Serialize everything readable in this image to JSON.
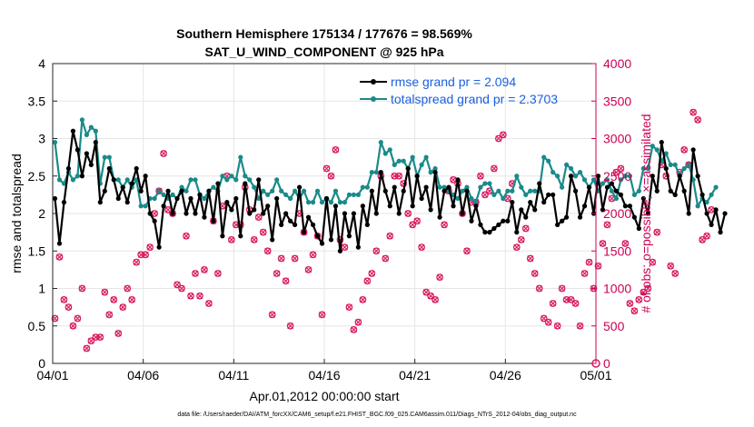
{
  "chart_data": {
    "type": "line",
    "title_line1": "Southern Hemisphere 175134 / 177676 = 98.569%",
    "title_line2": "SAT_U_WIND_COMPONENT @ 925 hPa",
    "xlabel": "Apr.01,2012 00:00:00 start",
    "ylabel_left": "rmse and totalspread",
    "ylabel_right": "# of obs: o=possible; ×=assimilated",
    "footnote": "data file: /Users/raeder/DAI/ATM_forcXX/CAM6_setup/f.e21.FHIST_BGC.f09_025.CAM6assim.011/Diags_NTrS_2012-04/obs_diag_output.nc",
    "xlim_days": [
      0,
      30
    ],
    "ylim_left": [
      0,
      4
    ],
    "ylim_right": [
      0,
      4000
    ],
    "x_tick_values": [
      0,
      5,
      10,
      15,
      20,
      25,
      30
    ],
    "x_tick_labels": [
      "04/01",
      "04/06",
      "04/11",
      "04/16",
      "04/21",
      "04/26",
      "05/01"
    ],
    "y_left_ticks": [
      "0",
      "0.5",
      "1",
      "1.5",
      "2",
      "2.5",
      "3",
      "3.5",
      "4"
    ],
    "y_right_ticks": [
      "0",
      "500",
      "1000",
      "1500",
      "2000",
      "2500",
      "3000",
      "3500",
      "4000"
    ],
    "colors": {
      "rmse": "#000000",
      "spread": "#1a8a8a",
      "obs": "#d81b60",
      "right_axis": "#cc0055",
      "legend_text": "#1a5fe0"
    },
    "series": [
      {
        "name": "rmse grand pr = 2.094",
        "key": "rmse",
        "step_days": 0.25,
        "values": [
          2.2,
          1.6,
          2.15,
          2.6,
          3.1,
          2.85,
          2.5,
          2.8,
          2.65,
          2.95,
          2.15,
          2.3,
          2.6,
          2.45,
          2.2,
          2.35,
          2.15,
          2.4,
          2.6,
          2.3,
          2.5,
          2.0,
          1.9,
          1.55,
          2.1,
          2.3,
          2.0,
          2.2,
          2.3,
          2.0,
          2.2,
          2.0,
          2.25,
          1.95,
          2.3,
          1.9,
          2.4,
          1.7,
          2.15,
          2.05,
          2.2,
          1.7,
          2.4,
          2.0,
          2.05,
          2.45,
          2.0,
          2.1,
          1.65,
          2.2,
          1.85,
          2.0,
          1.9,
          1.85,
          2.35,
          1.75,
          1.95,
          1.85,
          1.7,
          1.6,
          2.2,
          1.65,
          2.1,
          1.5,
          2.0,
          1.7,
          2.0,
          1.55,
          2.1,
          1.85,
          2.3,
          2.0,
          2.55,
          2.3,
          2.1,
          2.35,
          2.0,
          2.3,
          2.6,
          2.1,
          2.5,
          2.2,
          2.35,
          2.05,
          2.55,
          1.95,
          2.3,
          2.35,
          2.1,
          2.45,
          2.0,
          2.3,
          1.9,
          2.1,
          1.85,
          1.75,
          1.75,
          1.8,
          1.85,
          1.9,
          1.9,
          2.15,
          1.75,
          2.05,
          1.95,
          2.15,
          2.05,
          2.4,
          2.15,
          2.25,
          2.25,
          1.85,
          1.9,
          1.95,
          2.5,
          2.3,
          1.95,
          2.1,
          2.35,
          2.0,
          2.5,
          2.05,
          2.35,
          2.4,
          2.3,
          2.25,
          2.1,
          2.1,
          1.95,
          1.8,
          2.2,
          2.0,
          2.5,
          2.3,
          2.95,
          2.6,
          2.3,
          2.25,
          2.5,
          2.3,
          2.0,
          2.85,
          2.5,
          2.25,
          2.0,
          1.85,
          2.05,
          1.75,
          2.0
        ]
      },
      {
        "name": "totalspread grand pr = 2.3703",
        "key": "spread",
        "step_days": 0.25,
        "values": [
          2.95,
          2.45,
          2.4,
          2.55,
          2.45,
          2.5,
          3.25,
          3.05,
          3.15,
          3.1,
          2.4,
          2.75,
          2.75,
          2.45,
          2.45,
          2.35,
          2.45,
          2.35,
          2.45,
          2.1,
          2.1,
          2.2,
          2.2,
          2.3,
          2.25,
          2.2,
          2.25,
          2.2,
          2.35,
          2.3,
          2.45,
          2.45,
          2.25,
          2.2,
          2.3,
          2.35,
          2.3,
          2.5,
          2.45,
          2.5,
          2.45,
          2.75,
          2.5,
          2.45,
          2.35,
          2.2,
          2.3,
          2.25,
          2.3,
          2.45,
          2.3,
          2.25,
          2.2,
          2.3,
          2.2,
          2.3,
          2.15,
          2.15,
          2.3,
          2.15,
          2.2,
          2.15,
          2.3,
          2.15,
          2.15,
          2.25,
          2.25,
          2.25,
          2.35,
          2.35,
          2.55,
          2.55,
          2.95,
          2.8,
          2.85,
          2.65,
          2.7,
          2.7,
          2.6,
          2.75,
          2.5,
          2.65,
          2.75,
          2.55,
          2.6,
          2.35,
          2.35,
          2.3,
          2.25,
          2.2,
          2.3,
          2.35,
          2.2,
          2.15,
          2.35,
          2.4,
          2.4,
          2.25,
          2.3,
          2.2,
          2.3,
          2.3,
          2.5,
          2.35,
          2.25,
          2.3,
          2.3,
          2.3,
          2.75,
          2.7,
          2.55,
          2.5,
          2.35,
          2.65,
          2.6,
          2.5,
          2.55,
          2.45,
          2.35,
          2.45,
          2.3,
          2.4,
          2.45,
          2.3,
          2.2,
          2.45,
          2.5,
          2.5,
          2.25,
          2.3,
          2.6,
          2.6,
          2.9,
          2.85,
          2.7,
          2.8,
          2.65,
          2.65,
          2.5,
          2.6,
          2.65,
          2.45,
          2.1,
          2.2,
          2.15,
          2.25,
          2.35
        ]
      }
    ],
    "obs_counts": {
      "name": "assimilated observation count (right axis)",
      "step_days": 0.25,
      "values": [
        600,
        1420,
        850,
        750,
        500,
        600,
        1000,
        200,
        300,
        350,
        350,
        950,
        650,
        850,
        400,
        750,
        1000,
        850,
        1350,
        1450,
        1450,
        1550,
        2000,
        2300,
        2800,
        2050,
        2000,
        1050,
        1000,
        1700,
        900,
        1200,
        900,
        1250,
        800,
        1900,
        1200,
        2100,
        2500,
        1650,
        1850,
        1850,
        2350,
        2050,
        1650,
        1950,
        1750,
        1500,
        650,
        1200,
        1400,
        1100,
        500,
        1400,
        2000,
        1750,
        1250,
        1450,
        1700,
        650,
        2600,
        2500,
        2850,
        1650,
        1550,
        750,
        450,
        550,
        850,
        1100,
        1200,
        1500,
        2500,
        1400,
        1700,
        2500,
        2500,
        2400,
        2000,
        1850,
        1900,
        1550,
        950,
        900,
        850,
        1150,
        1850,
        2300,
        2450,
        2400,
        2000,
        1500,
        2150,
        2150,
        2500,
        2250,
        2300,
        2600,
        3000,
        3050,
        2200,
        2400,
        1550,
        1650,
        1800,
        1400,
        1200,
        1000,
        600,
        550,
        800,
        500,
        1000,
        850,
        850,
        800,
        500,
        1200,
        1350,
        1000,
        1300,
        1600,
        1850,
        2200,
        2550,
        2600,
        1600,
        800,
        700,
        850,
        950,
        1000,
        1350,
        1750,
        2650,
        2500,
        1300,
        1200,
        2550,
        2850,
        2650,
        3350,
        3250,
        1650,
        1700,
        2050
      ]
    },
    "legend": {
      "placement": "top-right",
      "entries": [
        "rmse grand pr = 2.094",
        "totalspread grand pr = 2.3703"
      ]
    }
  }
}
